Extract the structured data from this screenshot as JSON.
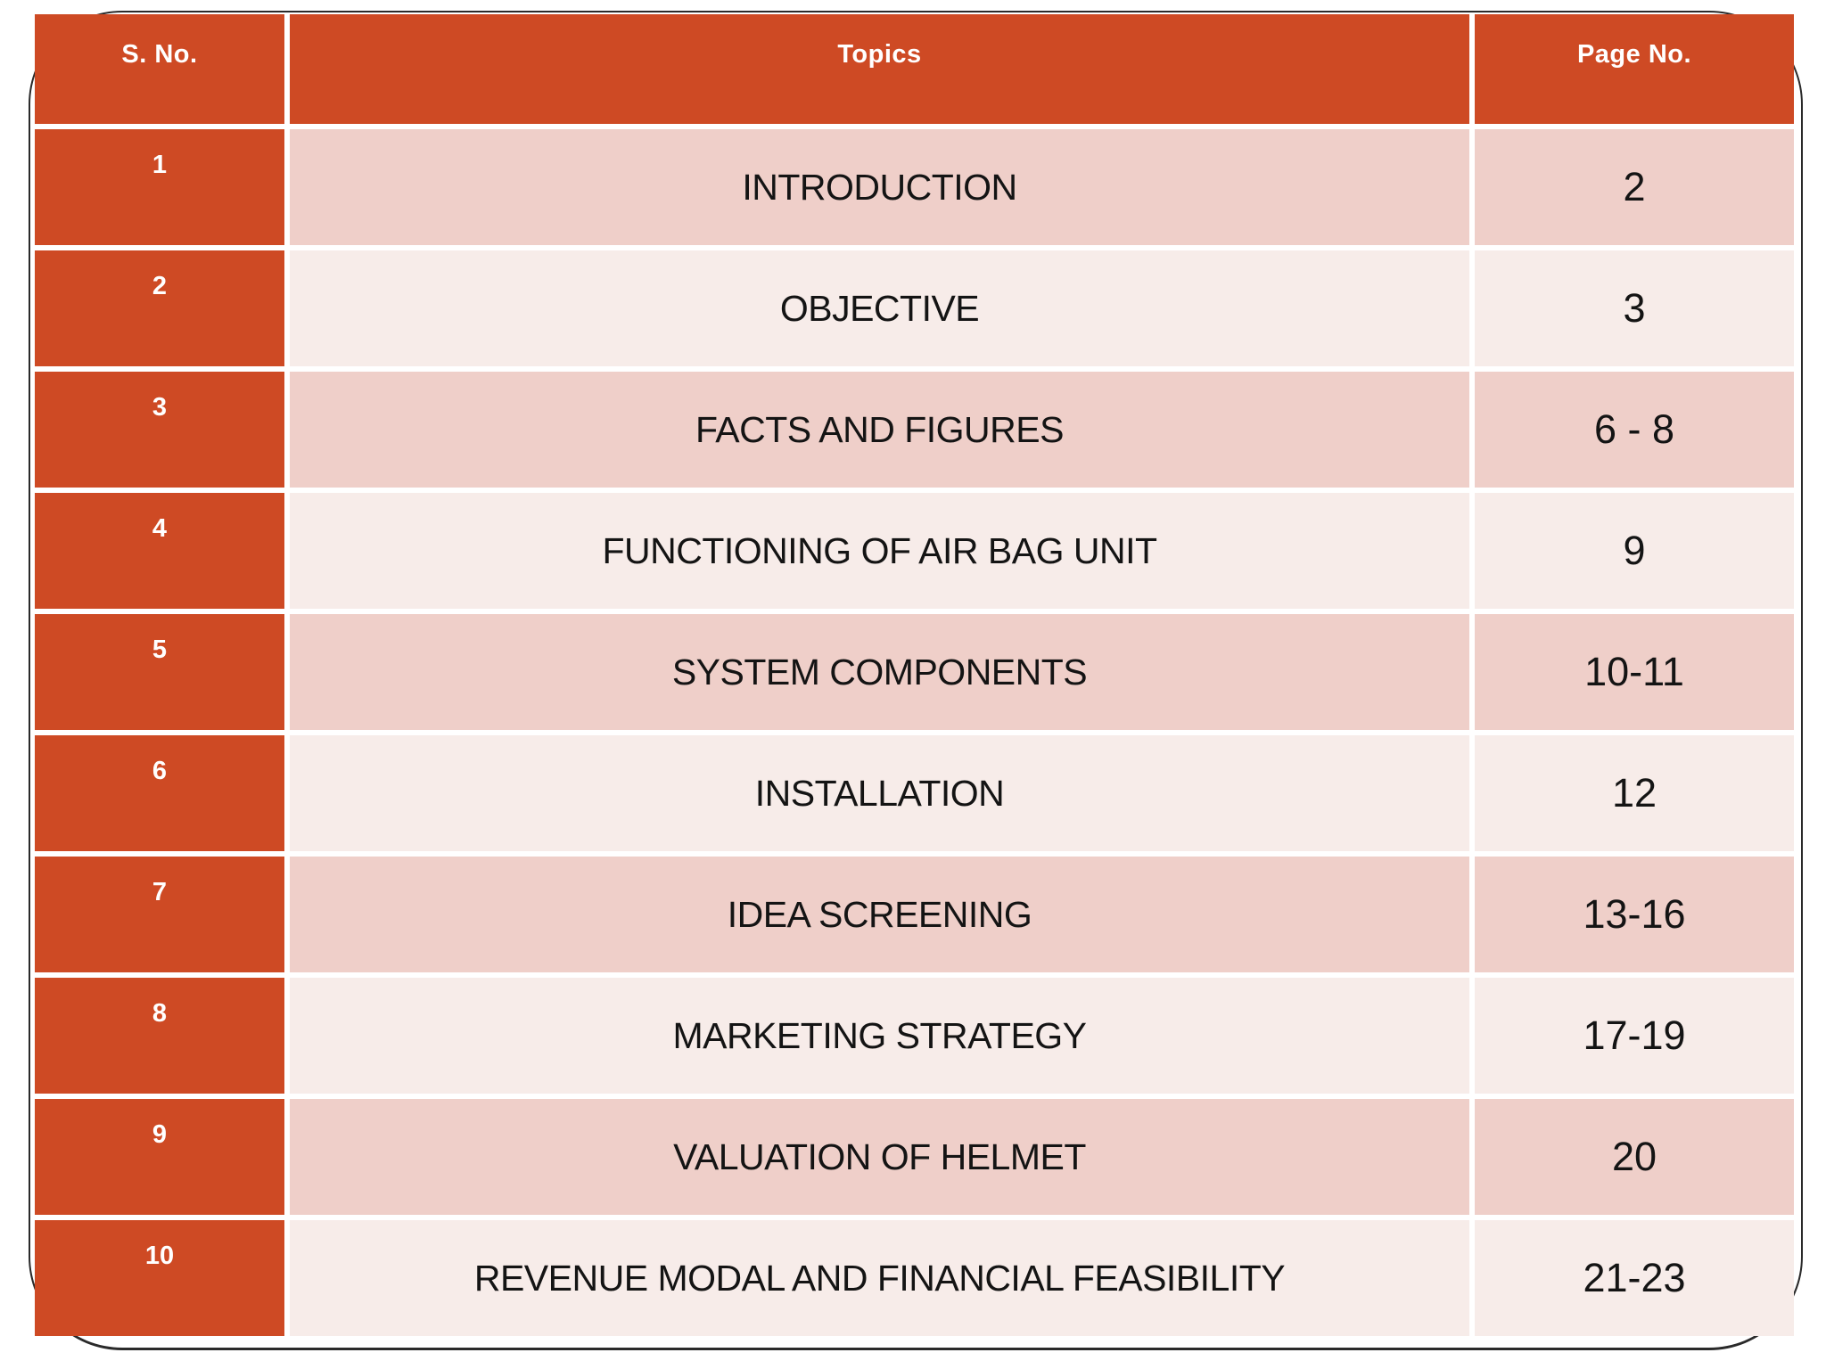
{
  "table": {
    "headers": {
      "sno": "S. No.",
      "topics": "Topics",
      "page": "Page No."
    },
    "rows": [
      {
        "sno": "1",
        "topic": "INTRODUCTION",
        "page": "2"
      },
      {
        "sno": "2",
        "topic": "OBJECTIVE",
        "page": "3"
      },
      {
        "sno": "3",
        "topic": "FACTS AND FIGURES",
        "page": "6 - 8"
      },
      {
        "sno": "4",
        "topic": "FUNCTIONING OF AIR BAG UNIT",
        "page": "9"
      },
      {
        "sno": "5",
        "topic": "SYSTEM COMPONENTS",
        "page": "10-11"
      },
      {
        "sno": "6",
        "topic": "INSTALLATION",
        "page": "12"
      },
      {
        "sno": "7",
        "topic": "IDEA SCREENING",
        "page": "13-16"
      },
      {
        "sno": "8",
        "topic": "MARKETING STRATEGY",
        "page": "17-19"
      },
      {
        "sno": "9",
        "topic": "VALUATION OF HELMET",
        "page": "20"
      },
      {
        "sno": "10",
        "topic": "REVENUE MODAL AND FINANCIAL FEASIBILITY",
        "page": "21-23"
      }
    ]
  },
  "colors": {
    "accent_orange": "#ce4a24",
    "row_band_dark": "#efcfc9",
    "row_band_light": "#f7ece9",
    "header_text": "#ffffff",
    "body_text": "#141414",
    "frame_border": "#2a2a2a",
    "page_background": "#ffffff"
  }
}
